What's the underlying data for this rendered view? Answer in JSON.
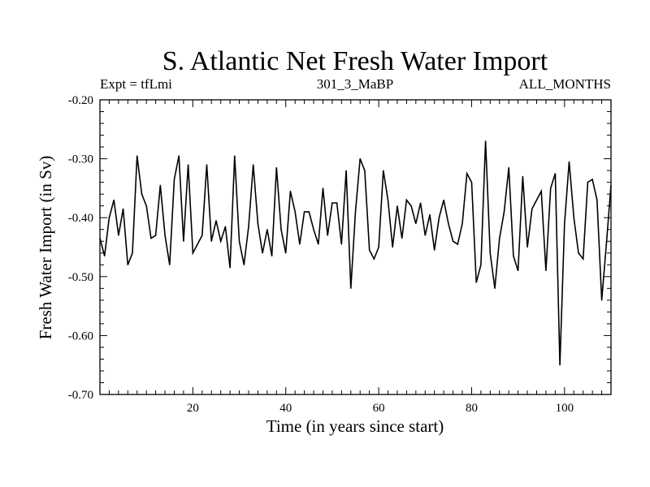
{
  "chart_data": {
    "type": "line",
    "title": "S. Atlantic Net Fresh Water Import",
    "subtitle_left": "Expt = tfLmi",
    "subtitle_center": "301_3_MaBP",
    "subtitle_right": "ALL_MONTHS",
    "xlabel": "Time (in years since start)",
    "ylabel": "Fresh Water Import (in Sv)",
    "xlim": [
      0,
      110
    ],
    "ylim": [
      -0.7,
      -0.2
    ],
    "x_ticks": [
      20,
      40,
      60,
      80,
      100
    ],
    "x_tick_labels": [
      "20",
      "40",
      "60",
      "80",
      "100"
    ],
    "y_ticks": [
      -0.2,
      -0.3,
      -0.4,
      -0.5,
      -0.6,
      -0.7
    ],
    "y_tick_labels": [
      "-0.20",
      "-0.30",
      "-0.40",
      "-0.50",
      "-0.60",
      "-0.70"
    ],
    "series": [
      {
        "name": "Net Fresh Water Import",
        "color": "#000000",
        "x": [
          0,
          1,
          2,
          3,
          4,
          5,
          6,
          7,
          8,
          9,
          10,
          11,
          12,
          13,
          14,
          15,
          16,
          17,
          18,
          19,
          20,
          21,
          22,
          23,
          24,
          25,
          26,
          27,
          28,
          29,
          30,
          31,
          32,
          33,
          34,
          35,
          36,
          37,
          38,
          39,
          40,
          41,
          42,
          43,
          44,
          45,
          46,
          47,
          48,
          49,
          50,
          51,
          52,
          53,
          54,
          55,
          56,
          57,
          58,
          59,
          60,
          61,
          62,
          63,
          64,
          65,
          66,
          67,
          68,
          69,
          70,
          71,
          72,
          73,
          74,
          75,
          76,
          77,
          78,
          79,
          80,
          81,
          82,
          83,
          84,
          85,
          86,
          87,
          88,
          89,
          90,
          91,
          92,
          93,
          94,
          95,
          96,
          97,
          98,
          99,
          100,
          101,
          102,
          103,
          104,
          105,
          106,
          107,
          108,
          109,
          110
        ],
        "y": [
          -0.435,
          -0.465,
          -0.4,
          -0.37,
          -0.43,
          -0.385,
          -0.48,
          -0.46,
          -0.295,
          -0.36,
          -0.38,
          -0.435,
          -0.43,
          -0.345,
          -0.43,
          -0.48,
          -0.335,
          -0.295,
          -0.44,
          -0.31,
          -0.46,
          -0.445,
          -0.43,
          -0.31,
          -0.44,
          -0.405,
          -0.44,
          -0.415,
          -0.485,
          -0.295,
          -0.44,
          -0.48,
          -0.415,
          -0.31,
          -0.41,
          -0.46,
          -0.42,
          -0.465,
          -0.315,
          -0.42,
          -0.46,
          -0.355,
          -0.39,
          -0.445,
          -0.39,
          -0.39,
          -0.42,
          -0.445,
          -0.35,
          -0.43,
          -0.375,
          -0.375,
          -0.445,
          -0.32,
          -0.52,
          -0.39,
          -0.3,
          -0.32,
          -0.455,
          -0.47,
          -0.45,
          -0.32,
          -0.37,
          -0.45,
          -0.38,
          -0.435,
          -0.37,
          -0.38,
          -0.41,
          -0.375,
          -0.43,
          -0.395,
          -0.455,
          -0.4,
          -0.37,
          -0.41,
          -0.44,
          -0.445,
          -0.41,
          -0.325,
          -0.34,
          -0.51,
          -0.48,
          -0.27,
          -0.46,
          -0.52,
          -0.435,
          -0.39,
          -0.315,
          -0.465,
          -0.49,
          -0.33,
          -0.45,
          -0.385,
          -0.37,
          -0.355,
          -0.49,
          -0.35,
          -0.325,
          -0.65,
          -0.41,
          -0.305,
          -0.4,
          -0.46,
          -0.47,
          -0.34,
          -0.335,
          -0.37,
          -0.54,
          -0.445,
          -0.345
        ]
      }
    ]
  }
}
